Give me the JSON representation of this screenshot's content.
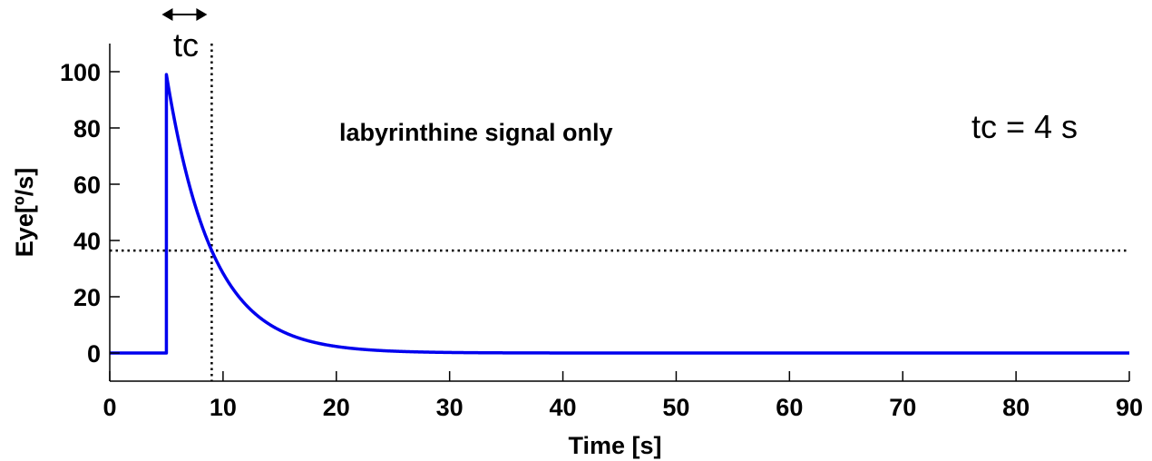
{
  "chart_data": {
    "type": "line",
    "xlabel": "Time [s]",
    "ylabel": "Eye[º/s]",
    "xlim": [
      0,
      90
    ],
    "ylim": [
      -10,
      110
    ],
    "xticks": [
      0,
      10,
      20,
      30,
      40,
      50,
      60,
      70,
      80,
      90
    ],
    "yticks": [
      0,
      20,
      40,
      60,
      80,
      100
    ],
    "grid": false,
    "series": [
      {
        "color": "#0000ee",
        "step_time": 5,
        "peak": 99,
        "time_constant": 4,
        "x": [
          0,
          5,
          5,
          6,
          7,
          8,
          9,
          10,
          11,
          12,
          13,
          14,
          15,
          16,
          17,
          18,
          19,
          20,
          22,
          24,
          26,
          28,
          30,
          90
        ],
        "y": [
          0,
          0,
          99,
          77.1,
          60.0,
          46.8,
          36.4,
          28.4,
          22.1,
          17.2,
          13.4,
          10.4,
          8.1,
          6.3,
          4.9,
          3.8,
          3.0,
          2.3,
          1.4,
          0.8,
          0.5,
          0.3,
          0.2,
          0
        ]
      }
    ],
    "reference_lines": [
      {
        "orientation": "horizontal",
        "y": 36.4,
        "style": "dotted"
      },
      {
        "orientation": "vertical",
        "x": 9,
        "style": "dotted"
      }
    ],
    "annotations": {
      "signal_label": "labyrinthine signal only",
      "tc_value": "tc = 4 s",
      "tc_arrow_label": "tc",
      "tc_arrow_span": [
        5,
        9
      ]
    }
  }
}
